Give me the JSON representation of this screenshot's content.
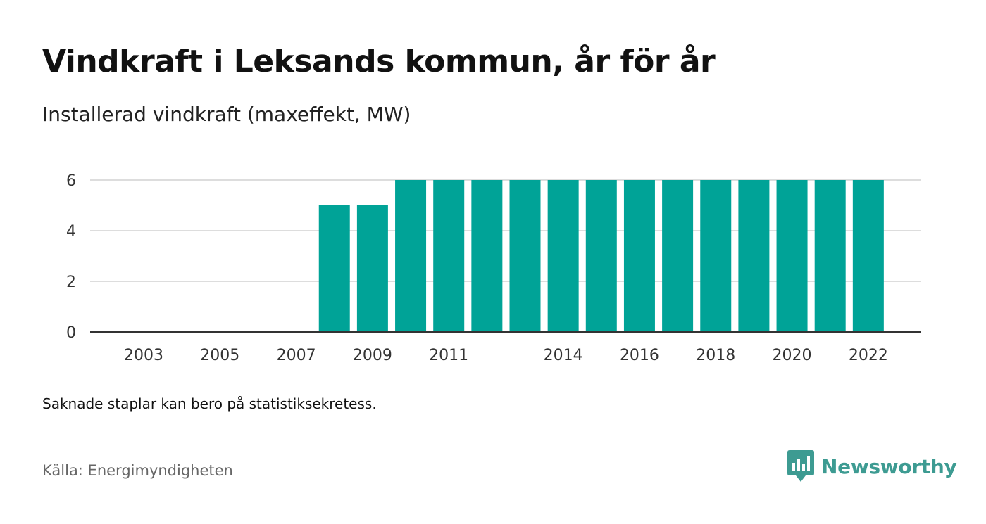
{
  "title": "Vindkraft i Leksands kommun, år för år",
  "subtitle": "Installerad vindkraft (maxeffekt, MW)",
  "note": "Saknade staplar kan bero på statistiksekretess.",
  "source": "Källa: Energimyndigheten",
  "brand": {
    "name": "Newsworthy",
    "icon": "newsworthy-logo-icon",
    "color": "#3d9b92"
  },
  "chart_data": {
    "type": "bar",
    "categories": [
      "2003",
      "2004",
      "2005",
      "2006",
      "2007",
      "2008",
      "2009",
      "2010",
      "2011",
      "2012",
      "2013",
      "2014",
      "2015",
      "2016",
      "2017",
      "2018",
      "2019",
      "2020",
      "2021",
      "2022"
    ],
    "values": [
      null,
      null,
      null,
      null,
      null,
      5,
      5,
      6,
      6,
      6,
      6,
      6,
      6,
      6,
      6,
      6,
      6,
      6,
      6,
      6
    ],
    "x_tick_labels": [
      "2003",
      "2005",
      "2007",
      "2009",
      "2011",
      "2014",
      "2016",
      "2018",
      "2020",
      "2022"
    ],
    "y_ticks": [
      0,
      2,
      4,
      6
    ],
    "ylim": [
      0,
      6
    ],
    "grid": true,
    "bar_color": "#00a397"
  }
}
